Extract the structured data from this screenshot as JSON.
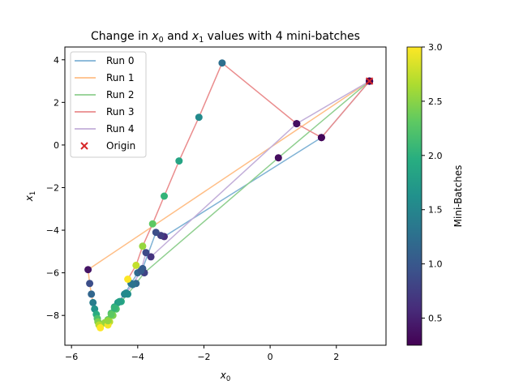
{
  "chart_data": {
    "type": "scatter",
    "title_prefix": "Change in ",
    "title_mid": " and ",
    "title_suffix": " values with 4 mini-batches",
    "xlabel": "x",
    "xlabel_sub": "0",
    "ylabel": "x",
    "ylabel_sub": "1",
    "xlim": [
      -6.2,
      3.5
    ],
    "ylim": [
      -9.4,
      4.6
    ],
    "xticks": [
      -6,
      -4,
      -2,
      0,
      2
    ],
    "yticks": [
      -8,
      -6,
      -4,
      -2,
      0,
      2,
      4
    ],
    "origin_point": [
      3,
      3
    ],
    "colorbar": {
      "label": "Mini-Batches",
      "range": [
        0.25,
        3.0
      ],
      "ticks": [
        0.5,
        1.0,
        1.5,
        2.0,
        2.5,
        3.0
      ]
    },
    "legend": {
      "position": "upper-left",
      "entries": [
        {
          "label": "Run 0",
          "color": "#7fb2d5"
        },
        {
          "label": "Run 1",
          "color": "#ffbe86"
        },
        {
          "label": "Run 2",
          "color": "#8fcf8f"
        },
        {
          "label": "Run 3",
          "color": "#ea8c8d"
        },
        {
          "label": "Run 4",
          "color": "#c2aed9"
        },
        {
          "label": "Origin",
          "color": "#d62728",
          "marker": "x"
        }
      ]
    },
    "series": [
      {
        "name": "Run 0",
        "color": "#7fb2d5",
        "points": [
          [
            3,
            3
          ],
          [
            1.55,
            0.35
          ],
          [
            -3.2,
            -4.3
          ],
          [
            -3.3,
            -4.25
          ],
          [
            -3.45,
            -4.1
          ],
          [
            -3.85,
            -5.8
          ],
          [
            -4.0,
            -6.0
          ],
          [
            -4.2,
            -6.5
          ],
          [
            -4.4,
            -7.0
          ],
          [
            -4.6,
            -7.4
          ],
          [
            -4.7,
            -7.6
          ],
          [
            -4.8,
            -7.9
          ],
          [
            -4.9,
            -8.2
          ],
          [
            -5.0,
            -8.35
          ]
        ],
        "mb": [
          0.25,
          0.3,
          0.6,
          0.75,
          0.9,
          1.05,
          1.2,
          1.35,
          1.5,
          1.7,
          1.9,
          2.1,
          2.3,
          2.55
        ]
      },
      {
        "name": "Run 1",
        "color": "#ffbe86",
        "points": [
          [
            3,
            3
          ],
          [
            -5.5,
            -5.85
          ],
          [
            -5.45,
            -6.5
          ],
          [
            -5.4,
            -7.0
          ],
          [
            -5.35,
            -7.4
          ],
          [
            -5.3,
            -7.7
          ],
          [
            -5.25,
            -7.95
          ],
          [
            -5.22,
            -8.15
          ],
          [
            -5.2,
            -8.3
          ],
          [
            -5.17,
            -8.45
          ],
          [
            -5.13,
            -8.58
          ]
        ],
        "mb": [
          0.25,
          0.4,
          0.9,
          1.15,
          1.4,
          1.65,
          1.95,
          2.2,
          2.45,
          2.7,
          3.0
        ]
      },
      {
        "name": "Run 2",
        "color": "#8fcf8f",
        "points": [
          [
            3,
            3
          ],
          [
            0.25,
            -0.6
          ],
          [
            -3.8,
            -6.0
          ],
          [
            -4.05,
            -6.5
          ],
          [
            -4.3,
            -7.0
          ],
          [
            -4.5,
            -7.35
          ],
          [
            -4.65,
            -7.7
          ],
          [
            -4.75,
            -8.0
          ],
          [
            -4.85,
            -8.3
          ],
          [
            -4.9,
            -8.45
          ]
        ],
        "mb": [
          0.25,
          0.35,
          0.8,
          1.2,
          1.6,
          1.9,
          2.2,
          2.45,
          2.7,
          2.95
        ]
      },
      {
        "name": "Run 3",
        "color": "#ea8c8d",
        "points": [
          [
            3,
            3
          ],
          [
            1.55,
            0.35
          ],
          [
            0.8,
            1.0
          ],
          [
            -1.45,
            3.85
          ],
          [
            -2.15,
            1.3
          ],
          [
            -2.75,
            -0.75
          ],
          [
            -3.2,
            -2.4
          ],
          [
            -3.55,
            -3.7
          ],
          [
            -3.85,
            -4.75
          ],
          [
            -4.05,
            -5.65
          ],
          [
            -4.3,
            -6.3
          ]
        ],
        "mb": [
          0.25,
          0.3,
          0.45,
          1.25,
          1.55,
          1.85,
          2.05,
          2.3,
          2.55,
          2.75,
          3.0
        ]
      },
      {
        "name": "Run 4",
        "color": "#c2aed9",
        "points": [
          [
            3,
            3
          ],
          [
            0.8,
            1.0
          ],
          [
            -3.6,
            -5.25
          ],
          [
            -3.75,
            -5.05
          ],
          [
            -3.9,
            -5.9
          ],
          [
            -4.15,
            -6.55
          ],
          [
            -4.35,
            -6.95
          ],
          [
            -4.55,
            -7.35
          ],
          [
            -4.7,
            -7.65
          ],
          [
            -4.8,
            -7.95
          ],
          [
            -4.9,
            -8.25
          ]
        ],
        "mb": [
          0.25,
          0.35,
          0.65,
          0.85,
          1.05,
          1.3,
          1.55,
          1.8,
          2.05,
          2.3,
          2.55
        ]
      }
    ]
  }
}
